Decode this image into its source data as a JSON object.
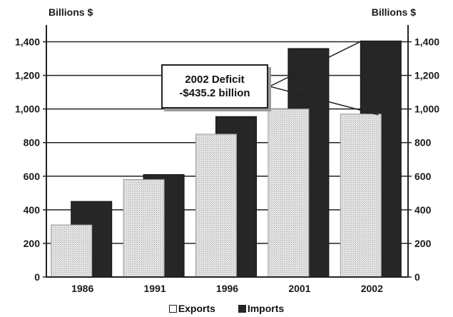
{
  "chart_data": {
    "type": "bar",
    "categories": [
      "1986",
      "1991",
      "1996",
      "2001",
      "2002"
    ],
    "series": [
      {
        "name": "Exports",
        "values": [
          310,
          580,
          850,
          1000,
          970
        ],
        "color": "#d9d9d9"
      },
      {
        "name": "Imports",
        "values": [
          450,
          610,
          955,
          1360,
          1405
        ],
        "color": "#262626"
      }
    ],
    "ylabel_left": "Billions $",
    "ylabel_right": "Billions $",
    "ylim": [
      0,
      1500
    ],
    "yticks": [
      0,
      200,
      400,
      600,
      800,
      1000,
      1200,
      1400
    ],
    "ytick_labels": [
      "0",
      "200",
      "400",
      "600",
      "800",
      "1,000",
      "1,200",
      "1,400"
    ],
    "grid": true,
    "legend_position": "bottom-center",
    "annotation": {
      "line1": "2002 Deficit",
      "line2": "-$435.2 billion"
    }
  }
}
